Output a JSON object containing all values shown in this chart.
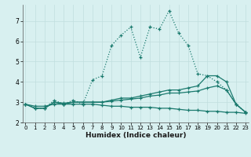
{
  "xlabel": "Humidex (Indice chaleur)",
  "x": [
    0,
    1,
    2,
    3,
    4,
    5,
    6,
    7,
    8,
    9,
    10,
    11,
    12,
    13,
    14,
    15,
    16,
    17,
    18,
    19,
    20,
    21,
    22,
    23
  ],
  "line_dotted": [
    2.9,
    2.7,
    2.7,
    3.1,
    2.9,
    3.1,
    2.9,
    4.1,
    4.3,
    5.8,
    6.3,
    6.7,
    5.2,
    6.7,
    6.6,
    7.5,
    6.4,
    5.8,
    4.4,
    4.3,
    4.0,
    3.6,
    2.9,
    2.5
  ],
  "line_upper": [
    2.9,
    2.7,
    2.7,
    3.0,
    2.9,
    3.0,
    3.0,
    3.0,
    3.0,
    3.1,
    3.2,
    3.2,
    3.3,
    3.4,
    3.5,
    3.6,
    3.6,
    3.7,
    3.8,
    4.3,
    4.3,
    4.0,
    2.9,
    2.5
  ],
  "line_mid": [
    2.9,
    2.7,
    2.7,
    3.0,
    2.95,
    3.0,
    3.0,
    3.0,
    3.0,
    3.05,
    3.1,
    3.15,
    3.2,
    3.3,
    3.35,
    3.45,
    3.45,
    3.5,
    3.55,
    3.7,
    3.8,
    3.6,
    2.9,
    2.5
  ],
  "line_lower": [
    2.9,
    2.8,
    2.8,
    2.9,
    2.9,
    2.9,
    2.9,
    2.9,
    2.85,
    2.8,
    2.8,
    2.75,
    2.75,
    2.75,
    2.7,
    2.7,
    2.65,
    2.6,
    2.6,
    2.55,
    2.55,
    2.5,
    2.5,
    2.45
  ],
  "line_color": "#1a7a6e",
  "bg_color": "#d8f0f0",
  "grid_color": "#c0dede",
  "ylim": [
    2.0,
    7.8
  ],
  "xlim": [
    -0.3,
    23.3
  ],
  "yticks": [
    2,
    3,
    4,
    5,
    6,
    7
  ],
  "xticks": [
    0,
    1,
    2,
    3,
    4,
    5,
    6,
    7,
    8,
    9,
    10,
    11,
    12,
    13,
    14,
    15,
    16,
    17,
    18,
    19,
    20,
    21,
    22,
    23
  ]
}
